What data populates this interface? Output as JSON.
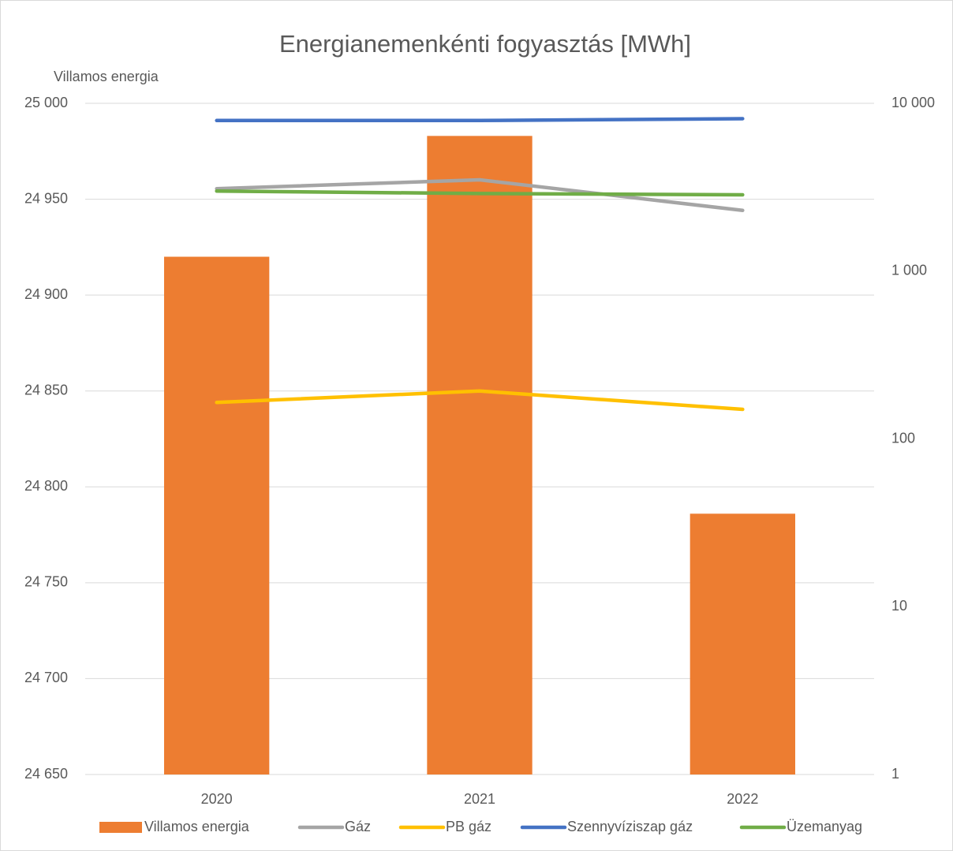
{
  "chart_data": {
    "type": "combo",
    "title": "Energianemenkénti fogyasztás [MWh]",
    "y_axis_label": "Villamos energia",
    "categories": [
      "2020",
      "2021",
      "2022"
    ],
    "series": [
      {
        "name": "Villamos energia",
        "type": "bar",
        "axis": "y",
        "color": "#ed7d31",
        "values": [
          24920,
          24983,
          24786
        ]
      },
      {
        "name": "Gáz",
        "type": "line",
        "axis": "y2",
        "color": "#a5a5a5",
        "values": [
          3100,
          3500,
          2300
        ]
      },
      {
        "name": "PB gáz",
        "type": "line",
        "axis": "y2",
        "color": "#ffc000",
        "values": [
          165,
          193,
          150
        ]
      },
      {
        "name": "Szennyvíziszap gáz",
        "type": "line",
        "axis": "y2",
        "color": "#4472c4",
        "values": [
          7900,
          7900,
          8100
        ]
      },
      {
        "name": "Üzemanyag",
        "type": "line",
        "axis": "y2",
        "color": "#70ad47",
        "values": [
          3000,
          2900,
          2850
        ]
      }
    ],
    "ylim": [
      24650,
      25000
    ],
    "yticks": [
      {
        "value": 24650,
        "label": "24 650"
      },
      {
        "value": 24700,
        "label": "24 700"
      },
      {
        "value": 24750,
        "label": "24 750"
      },
      {
        "value": 24800,
        "label": "24 800"
      },
      {
        "value": 24850,
        "label": "24 850"
      },
      {
        "value": 24900,
        "label": "24 900"
      },
      {
        "value": 24950,
        "label": "24 950"
      },
      {
        "value": 25000,
        "label": "25 000"
      }
    ],
    "y2lim": [
      1,
      10000
    ],
    "y2log": true,
    "y2ticks": [
      1,
      10,
      100,
      {
        "value": 1000,
        "label": "1 000"
      },
      {
        "value": 10000,
        "label": "10 000"
      }
    ],
    "grid": true,
    "legend": "bottom"
  }
}
